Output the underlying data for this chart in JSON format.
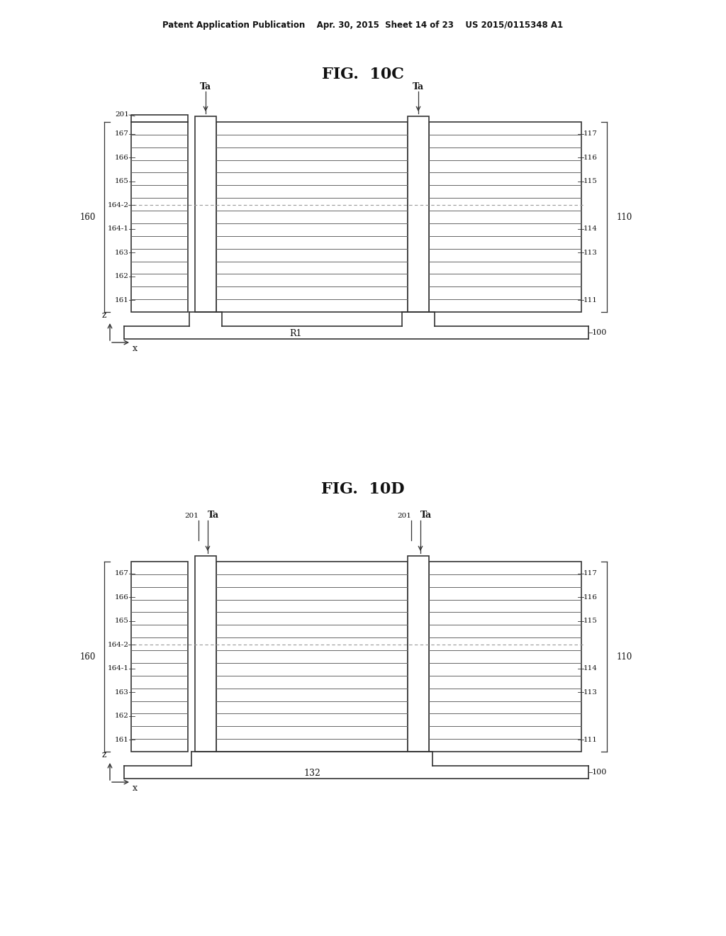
{
  "bg_color": "#ffffff",
  "header_text": "Patent Application Publication    Apr. 30, 2015  Sheet 14 of 23    US 2015/0115348 A1",
  "fig10c_title": "FIG.  10C",
  "fig10d_title": "FIG.  10D",
  "line_color": "#333333",
  "hatch_color": "#555555"
}
